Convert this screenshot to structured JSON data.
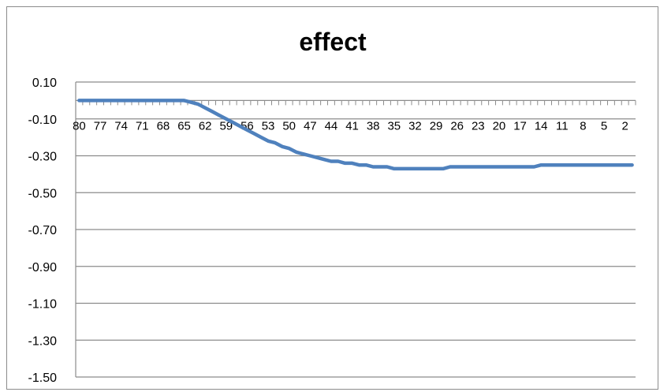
{
  "chart_data": {
    "type": "line",
    "title": "effect",
    "xlabel": "",
    "ylabel": "",
    "ylim": [
      -1.5,
      0.1
    ],
    "y_ticks": [
      "0.10",
      "-0.10",
      "-0.30",
      "-0.50",
      "-0.70",
      "-0.90",
      "-1.10",
      "-1.30",
      "-1.50"
    ],
    "y_tick_values": [
      0.1,
      -0.1,
      -0.3,
      -0.5,
      -0.7,
      -0.9,
      -1.1,
      -1.3,
      -1.5
    ],
    "x_categories_desc": {
      "start": 80,
      "end": 1,
      "step": -1
    },
    "x_tick_labels": [
      "80",
      "77",
      "74",
      "71",
      "68",
      "65",
      "62",
      "59",
      "56",
      "53",
      "50",
      "47",
      "44",
      "41",
      "38",
      "35",
      "32",
      "29",
      "26",
      "23",
      "20",
      "17",
      "14",
      "11",
      "8",
      "5",
      "2"
    ],
    "x_axis_crosses_at": 0,
    "grid": "horizontal",
    "legend": "none",
    "series": [
      {
        "color": "#4f81bd",
        "values": [
          0,
          0,
          0,
          0,
          0,
          0,
          0,
          0,
          0,
          0,
          0,
          0,
          0,
          0,
          0,
          0,
          -0.01,
          -0.02,
          -0.04,
          -0.06,
          -0.08,
          -0.1,
          -0.12,
          -0.14,
          -0.16,
          -0.18,
          -0.2,
          -0.22,
          -0.23,
          -0.25,
          -0.26,
          -0.28,
          -0.29,
          -0.3,
          -0.31,
          -0.32,
          -0.33,
          -0.33,
          -0.34,
          -0.34,
          -0.35,
          -0.35,
          -0.36,
          -0.36,
          -0.36,
          -0.37,
          -0.37,
          -0.37,
          -0.37,
          -0.37,
          -0.37,
          -0.37,
          -0.37,
          -0.36,
          -0.36,
          -0.36,
          -0.36,
          -0.36,
          -0.36,
          -0.36,
          -0.36,
          -0.36,
          -0.36,
          -0.36,
          -0.36,
          -0.36,
          -0.35,
          -0.35,
          -0.35,
          -0.35,
          -0.35,
          -0.35,
          -0.35,
          -0.35,
          -0.35,
          -0.35,
          -0.35,
          -0.35,
          -0.35,
          -0.35
        ]
      }
    ]
  }
}
